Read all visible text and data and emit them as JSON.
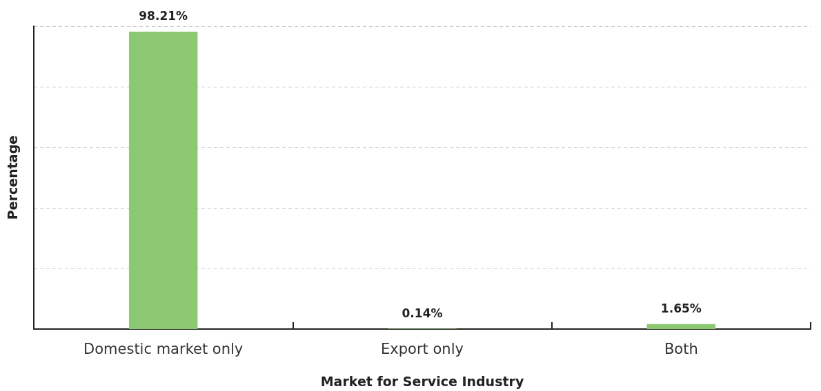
{
  "chart_data": {
    "type": "bar",
    "categories": [
      "Domestic market only",
      "Export only",
      "Both"
    ],
    "values": [
      98.21,
      0.14,
      1.65
    ],
    "color": "#8dc873",
    "value_labels": [
      "98.21%",
      "0.14%",
      "1.65%"
    ],
    "xlabel": "Market for Service Industry",
    "ylabel": "Percentage",
    "ylim": [
      0,
      100
    ],
    "yticks": [
      {
        "value": 0,
        "label": null
      },
      {
        "value": 20,
        "label": null
      },
      {
        "value": 40,
        "label": null
      },
      {
        "value": 60,
        "label": null
      },
      {
        "value": 80,
        "label": null
      },
      {
        "value": 100,
        "label": null
      }
    ],
    "grid": "y",
    "tick_labels": "x"
  }
}
